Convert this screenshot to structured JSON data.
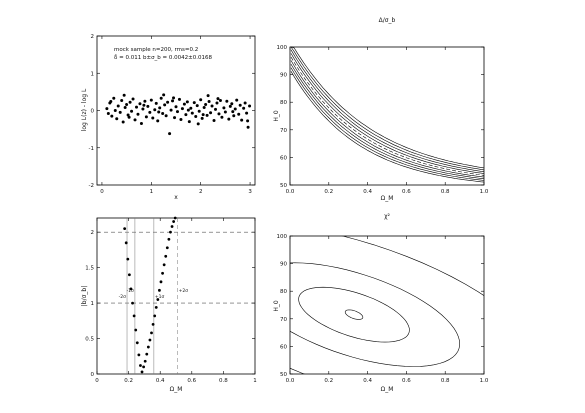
{
  "chart_data": [
    {
      "type": "scatter",
      "annotation_line1": "mock sample n=200, rms=0.2",
      "annotation_line2": "δ̄ = 0.011 b±σ_b = 0.0042±0.0168",
      "xlabel": "x",
      "ylabel": "log L(z) - log L",
      "xlim": [
        -0.1,
        3.1
      ],
      "ylim": [
        -2,
        2
      ],
      "x_ticks": [
        "0",
        "1",
        "2",
        "3"
      ],
      "y_ticks": [
        "-2",
        "-1",
        "0",
        "1",
        "2"
      ],
      "points": [
        [
          0.1,
          0.05
        ],
        [
          0.13,
          -0.08
        ],
        [
          0.16,
          0.2
        ],
        [
          0.2,
          -0.15
        ],
        [
          0.24,
          0.33
        ],
        [
          0.27,
          0.0
        ],
        [
          0.3,
          -0.22
        ],
        [
          0.33,
          0.12
        ],
        [
          0.37,
          -0.05
        ],
        [
          0.4,
          0.27
        ],
        [
          0.43,
          -0.31
        ],
        [
          0.47,
          0.08
        ],
        [
          0.5,
          0.16
        ],
        [
          0.53,
          -0.12
        ],
        [
          0.57,
          0.22
        ],
        [
          0.6,
          -0.02
        ],
        [
          0.63,
          0.31
        ],
        [
          0.67,
          -0.25
        ],
        [
          0.7,
          0.09
        ],
        [
          0.73,
          -0.1
        ],
        [
          0.77,
          0.18
        ],
        [
          0.8,
          -0.35
        ],
        [
          0.83,
          0.04
        ],
        [
          0.87,
          0.25
        ],
        [
          0.9,
          -0.17
        ],
        [
          0.93,
          0.11
        ],
        [
          0.97,
          -0.05
        ],
        [
          1.0,
          0.28
        ],
        [
          1.03,
          -0.2
        ],
        [
          1.07,
          0.02
        ],
        [
          1.1,
          0.19
        ],
        [
          1.13,
          -0.28
        ],
        [
          1.17,
          0.07
        ],
        [
          1.2,
          0.33
        ],
        [
          1.23,
          -0.08
        ],
        [
          1.27,
          0.15
        ],
        [
          1.3,
          -0.14
        ],
        [
          1.33,
          0.22
        ],
        [
          1.37,
          -0.62
        ],
        [
          1.4,
          0.01
        ],
        [
          1.43,
          0.26
        ],
        [
          1.47,
          -0.19
        ],
        [
          1.5,
          0.1
        ],
        [
          1.53,
          -0.03
        ],
        [
          1.57,
          0.3
        ],
        [
          1.6,
          -0.24
        ],
        [
          1.63,
          0.05
        ],
        [
          1.67,
          0.17
        ],
        [
          1.7,
          -0.11
        ],
        [
          1.73,
          0.23
        ],
        [
          1.77,
          -0.3
        ],
        [
          1.8,
          0.06
        ],
        [
          1.83,
          -0.07
        ],
        [
          1.87,
          0.21
        ],
        [
          1.9,
          -0.16
        ],
        [
          1.93,
          0.13
        ],
        [
          1.97,
          -0.02
        ],
        [
          2.0,
          0.29
        ],
        [
          2.03,
          -0.21
        ],
        [
          2.07,
          0.08
        ],
        [
          2.1,
          0.16
        ],
        [
          2.13,
          -0.13
        ],
        [
          2.17,
          0.24
        ],
        [
          2.2,
          -0.06
        ],
        [
          2.23,
          0.12
        ],
        [
          2.27,
          -0.27
        ],
        [
          2.3,
          0.03
        ],
        [
          2.33,
          0.2
        ],
        [
          2.37,
          -0.09
        ],
        [
          2.4,
          0.27
        ],
        [
          2.43,
          -0.18
        ],
        [
          2.47,
          0.07
        ],
        [
          2.5,
          -0.04
        ],
        [
          2.53,
          0.25
        ],
        [
          2.57,
          -0.23
        ],
        [
          2.6,
          0.11
        ],
        [
          2.63,
          0.18
        ],
        [
          2.67,
          -0.14
        ],
        [
          2.7,
          0.04
        ],
        [
          2.73,
          0.28
        ],
        [
          2.77,
          -0.1
        ],
        [
          2.8,
          0.14
        ],
        [
          2.83,
          -0.26
        ],
        [
          2.87,
          0.06
        ],
        [
          2.9,
          0.2
        ],
        [
          2.93,
          -0.07
        ],
        [
          2.96,
          -0.45
        ],
        [
          2.99,
          0.12
        ],
        [
          0.18,
          0.24
        ],
        [
          0.55,
          -0.18
        ],
        [
          0.85,
          0.14
        ],
        [
          1.15,
          -0.04
        ],
        [
          1.45,
          0.34
        ],
        [
          1.75,
          0.01
        ],
        [
          2.05,
          -0.11
        ],
        [
          2.35,
          0.32
        ],
        [
          2.65,
          -0.03
        ],
        [
          2.95,
          -0.28
        ],
        [
          0.45,
          0.41
        ],
        [
          1.25,
          0.42
        ],
        [
          2.15,
          0.4
        ],
        [
          1.95,
          -0.36
        ]
      ]
    },
    {
      "type": "contour",
      "title": "Δ/σ_b",
      "xlabel": "Ω_M",
      "ylabel": "H_0",
      "xlim": [
        0,
        1
      ],
      "ylim": [
        50,
        100
      ],
      "x_ticks": [
        "0.0",
        "0.2",
        "0.4",
        "0.6",
        "0.8",
        "1.0"
      ],
      "y_ticks": [
        "50",
        "60",
        "70",
        "80",
        "90",
        "100"
      ],
      "bands": [
        {
          "offset": -4,
          "dashed": false
        },
        {
          "offset": -3,
          "dashed": false
        },
        {
          "offset": -2,
          "dashed": false
        },
        {
          "offset": -1,
          "dashed": false
        },
        {
          "offset": 0,
          "dashed": true
        },
        {
          "offset": 1,
          "dashed": false
        },
        {
          "offset": 2,
          "dashed": false
        },
        {
          "offset": 3,
          "dashed": false
        },
        {
          "offset": 4,
          "dashed": false
        }
      ]
    },
    {
      "type": "scatter",
      "xlabel": "Ω_M",
      "ylabel": "|b/σ_b|",
      "xlim": [
        0,
        1
      ],
      "ylim": [
        0,
        2.2
      ],
      "x_ticks": [
        "0",
        "0.2",
        "0.4",
        "0.6",
        "0.8",
        "1"
      ],
      "y_ticks": [
        "0",
        "0.5",
        "1",
        "1.5",
        "2"
      ],
      "hlines": [
        1,
        2
      ],
      "vlines": [
        0.19,
        0.24,
        0.36,
        0.51
      ],
      "vline_labels": [
        "-2σ",
        "-1σ",
        "+1σ",
        "+2σ"
      ],
      "points": [
        [
          0.175,
          2.05
        ],
        [
          0.185,
          1.85
        ],
        [
          0.195,
          1.62
        ],
        [
          0.205,
          1.4
        ],
        [
          0.215,
          1.2
        ],
        [
          0.225,
          1.0
        ],
        [
          0.235,
          0.82
        ],
        [
          0.245,
          0.62
        ],
        [
          0.255,
          0.44
        ],
        [
          0.265,
          0.27
        ],
        [
          0.275,
          0.12
        ],
        [
          0.285,
          0.03
        ],
        [
          0.295,
          0.1
        ],
        [
          0.305,
          0.18
        ],
        [
          0.315,
          0.28
        ],
        [
          0.325,
          0.38
        ],
        [
          0.335,
          0.48
        ],
        [
          0.345,
          0.58
        ],
        [
          0.355,
          0.7
        ],
        [
          0.365,
          0.82
        ],
        [
          0.375,
          0.94
        ],
        [
          0.385,
          1.05
        ],
        [
          0.395,
          1.18
        ],
        [
          0.405,
          1.3
        ],
        [
          0.415,
          1.42
        ],
        [
          0.425,
          1.54
        ],
        [
          0.435,
          1.66
        ],
        [
          0.445,
          1.78
        ],
        [
          0.455,
          1.9
        ],
        [
          0.465,
          2.0
        ],
        [
          0.475,
          2.08
        ],
        [
          0.485,
          2.15
        ],
        [
          0.495,
          2.2
        ],
        [
          0.505,
          2.26
        ],
        [
          0.515,
          2.32
        ],
        [
          0.525,
          2.38
        ]
      ]
    },
    {
      "type": "contour",
      "title": "χ²",
      "xlabel": "Ω_M",
      "ylabel": "H_0",
      "xlim": [
        0,
        1
      ],
      "ylim": [
        50,
        100
      ],
      "x_ticks": [
        "0.0",
        "0.2",
        "0.4",
        "0.6",
        "0.8",
        "1.0"
      ],
      "y_ticks": [
        "50",
        "60",
        "70",
        "80",
        "90",
        "100"
      ],
      "contour_levels": 4
    }
  ]
}
